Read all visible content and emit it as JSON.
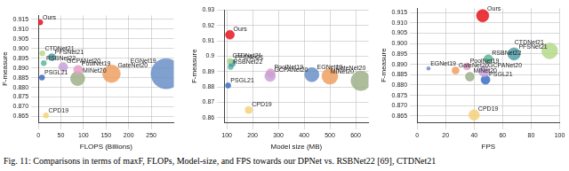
{
  "chart_data": [
    {
      "type": "bubble",
      "x_label": "FLOPS (Billions)",
      "y_label": "F-measure",
      "xlim": [
        0,
        300
      ],
      "xticks": [
        0,
        50,
        100,
        150,
        200,
        250
      ],
      "ylim": [
        0.862,
        0.917
      ],
      "yticks": [
        0.865,
        {
          "value": 0.87,
          "label": "0.870"
        },
        0.875,
        {
          "value": 0.88,
          "label": "0.880"
        },
        0.885,
        {
          "value": 0.89,
          "label": "0.890"
        },
        0.895,
        {
          "value": 0.9,
          "label": "0.900"
        },
        0.905,
        {
          "value": 0.91,
          "label": "0.910"
        },
        0.915
      ],
      "grid": true,
      "data_labels": true,
      "series": [
        {
          "name": "Ours",
          "color": "#e8141c",
          "x": [
            4
          ],
          "values": [
            0.9135
          ],
          "sizes": [
            3
          ]
        },
        {
          "name": "CTDNet21",
          "color": "#b5d98a",
          "x": [
            9
          ],
          "values": [
            0.8975
          ],
          "sizes": [
            3
          ]
        },
        {
          "name": "PFSNet21",
          "color": "#4f9ea8",
          "x": [
            30
          ],
          "values": [
            0.8955
          ],
          "sizes": [
            4
          ]
        },
        {
          "name": "RSBNet22",
          "color": "#5fb89a",
          "x": [
            12
          ],
          "values": [
            0.8925
          ],
          "sizes": [
            3
          ]
        },
        {
          "name": "GCPANet20",
          "color": "#c8a2d8",
          "x": [
            55
          ],
          "values": [
            0.8905
          ],
          "sizes": [
            5
          ]
        },
        {
          "name": "PSGL21",
          "color": "#3a6fc4",
          "x": [
            8
          ],
          "values": [
            0.885
          ],
          "sizes": [
            3
          ]
        },
        {
          "name": "PoolNet19",
          "color": "#e8a0c8",
          "x": [
            88
          ],
          "values": [
            0.889
          ],
          "sizes": [
            5
          ]
        },
        {
          "name": "MINet20",
          "color": "#9fb08a",
          "x": [
            87
          ],
          "values": [
            0.8845
          ],
          "sizes": [
            8
          ]
        },
        {
          "name": "GateNet20",
          "color": "#f0a060",
          "x": [
            162
          ],
          "values": [
            0.887
          ],
          "sizes": [
            10
          ]
        },
        {
          "name": "EGNet19",
          "color": "#6a8fc8",
          "x": [
            283
          ],
          "values": [
            0.887
          ],
          "sizes": [
            17
          ]
        },
        {
          "name": "CPD19",
          "color": "#f5d27a",
          "x": [
            17
          ],
          "values": [
            0.8655
          ],
          "sizes": [
            3
          ]
        }
      ]
    },
    {
      "type": "bubble",
      "x_label": "Model size (MB)",
      "y_label": "F-measure",
      "xlim": [
        90,
        650
      ],
      "xticks": [
        100,
        200,
        300,
        400,
        500,
        600
      ],
      "ylim": [
        0.857,
        0.93
      ],
      "yticks": [
        0.86,
        0.87,
        0.88,
        0.89,
        0.9,
        0.91,
        0.92,
        0.93
      ],
      "grid": true,
      "data_labels": true,
      "series": [
        {
          "name": "Ours",
          "color": "#e8141c",
          "x": [
            112
          ],
          "values": [
            0.914
          ],
          "sizes": [
            5
          ]
        },
        {
          "name": "CTDNet21",
          "color": "#b5d98a",
          "x": [
            112
          ],
          "values": [
            0.897
          ],
          "sizes": [
            3
          ]
        },
        {
          "name": "PFSNet21",
          "color": "#4f9ea8",
          "x": [
            120
          ],
          "values": [
            0.8955
          ],
          "sizes": [
            4
          ]
        },
        {
          "name": "RSBNet22",
          "color": "#5fb89a",
          "x": [
            115
          ],
          "values": [
            0.893
          ],
          "sizes": [
            3
          ]
        },
        {
          "name": "PSGL21",
          "color": "#3a6fc4",
          "x": [
            105
          ],
          "values": [
            0.881
          ],
          "sizes": [
            3
          ]
        },
        {
          "name": "GCPANet20",
          "color": "#c8a2d8",
          "x": [
            268
          ],
          "values": [
            0.887
          ],
          "sizes": [
            6
          ]
        },
        {
          "name": "PoolNet19",
          "color": "#e8a0c8",
          "x": [
            270
          ],
          "values": [
            0.889
          ],
          "sizes": [
            5
          ]
        },
        {
          "name": "CPD19",
          "color": "#f5d27a",
          "x": [
            185
          ],
          "values": [
            0.865
          ],
          "sizes": [
            4
          ]
        },
        {
          "name": "EGNet19",
          "color": "#6a8fc8",
          "x": [
            430
          ],
          "values": [
            0.888
          ],
          "sizes": [
            8
          ]
        },
        {
          "name": "GateNet20",
          "color": "#f0a060",
          "x": [
            500
          ],
          "values": [
            0.887
          ],
          "sizes": [
            9
          ]
        },
        {
          "name": "MINet20",
          "color": "#9fb08a",
          "x": [
            620
          ],
          "values": [
            0.884
          ],
          "sizes": [
            11
          ]
        }
      ]
    },
    {
      "type": "bubble",
      "x_label": "FPS",
      "y_label": "F-measure",
      "xlim": [
        0,
        100
      ],
      "xticks": [
        0,
        20,
        40,
        60,
        80,
        100
      ],
      "ylim": [
        0.862,
        0.917
      ],
      "yticks": [
        0.865,
        {
          "value": 0.87,
          "label": "0.870"
        },
        0.875,
        {
          "value": 0.88,
          "label": "0.880"
        },
        0.885,
        {
          "value": 0.89,
          "label": "0.890"
        },
        0.895,
        {
          "value": 0.9,
          "label": "0.900"
        },
        0.905,
        {
          "value": 0.91,
          "label": "0.910"
        },
        0.915
      ],
      "grid": true,
      "data_labels": true,
      "series": [
        {
          "name": "Ours",
          "color": "#e8141c",
          "x": [
            46
          ],
          "values": [
            0.9135
          ],
          "sizes": [
            7
          ]
        },
        {
          "name": "CTDNet21",
          "color": "#b5d98a",
          "x": [
            93
          ],
          "values": [
            0.8965
          ],
          "sizes": [
            9
          ]
        },
        {
          "name": "PFSNet21",
          "color": "#4f9ea8",
          "x": [
            68
          ],
          "values": [
            0.895
          ],
          "sizes": [
            7
          ]
        },
        {
          "name": "RSBNet22",
          "color": "#5fb89a",
          "x": [
            50
          ],
          "values": [
            0.8925
          ],
          "sizes": [
            5
          ]
        },
        {
          "name": "EGNet19",
          "color": "#6a8fc8",
          "x": [
            8
          ],
          "values": [
            0.888
          ],
          "sizes": [
            2
          ]
        },
        {
          "name": "GateNet20",
          "color": "#f0a060",
          "x": [
            27
          ],
          "values": [
            0.887
          ],
          "sizes": [
            4
          ]
        },
        {
          "name": "PoolNet19",
          "color": "#e8a0c8",
          "x": [
            35
          ],
          "values": [
            0.889
          ],
          "sizes": [
            4
          ]
        },
        {
          "name": "GCPANet20",
          "color": "#c8a2d8",
          "x": [
            47
          ],
          "values": [
            0.8865
          ],
          "sizes": [
            6
          ]
        },
        {
          "name": "MINet20",
          "color": "#9fb08a",
          "x": [
            37
          ],
          "values": [
            0.884
          ],
          "sizes": [
            5
          ]
        },
        {
          "name": "PSGL21",
          "color": "#3a6fc4",
          "x": [
            48
          ],
          "values": [
            0.8825
          ],
          "sizes": [
            5
          ]
        },
        {
          "name": "CPD19",
          "color": "#f5d27a",
          "x": [
            40
          ],
          "values": [
            0.8655
          ],
          "sizes": [
            6
          ]
        }
      ]
    }
  ],
  "caption": "Fig. 11: Comparisons in terms of maxF, FLOPs, Model-size, and FPS towards our DPNet vs. RSBNet22 [69], CTDNet21"
}
